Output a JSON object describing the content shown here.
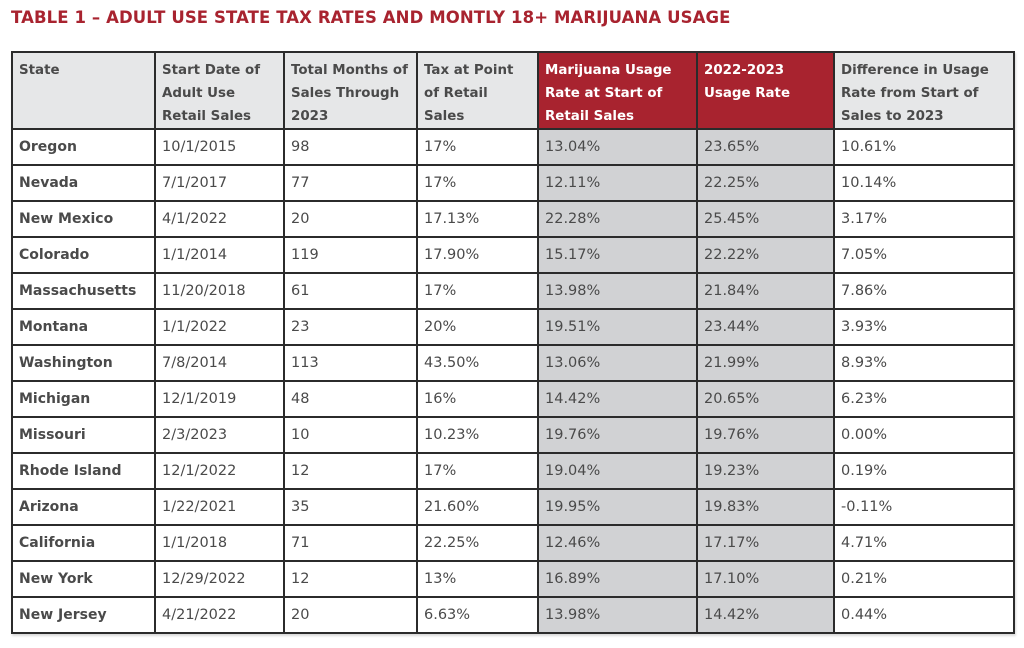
{
  "title": "TABLE 1 – ADULT USE STATE TAX RATES AND MONTLY 18+ MARIJUANA USAGE",
  "colors": {
    "accent_red": "#a8232f",
    "header_gray": "#e6e7e8",
    "highlight_gray": "#d1d2d4",
    "text": "#4a4a4a"
  },
  "table": {
    "headers": [
      "State",
      "Start Date of Adult Use Retail Sales",
      "Total Months of Sales Through 2023",
      "Tax at Point of Retail Sales",
      "Marijuana Usage Rate at Start of Retail Sales",
      "2022-2023 Usage Rate",
      "Difference in Usage Rate from Start of Sales to 2023"
    ],
    "rows": [
      [
        "Oregon",
        "10/1/2015",
        "98",
        "17%",
        "13.04%",
        "23.65%",
        "10.61%"
      ],
      [
        "Nevada",
        "7/1/2017",
        "77",
        "17%",
        "12.11%",
        "22.25%",
        "10.14%"
      ],
      [
        "New Mexico",
        "4/1/2022",
        "20",
        "17.13%",
        "22.28%",
        "25.45%",
        "3.17%"
      ],
      [
        "Colorado",
        "1/1/2014",
        "119",
        "17.90%",
        "15.17%",
        "22.22%",
        "7.05%"
      ],
      [
        "Massachusetts",
        "11/20/2018",
        "61",
        "17%",
        "13.98%",
        "21.84%",
        "7.86%"
      ],
      [
        "Montana",
        "1/1/2022",
        "23",
        "20%",
        "19.51%",
        "23.44%",
        "3.93%"
      ],
      [
        "Washington",
        "7/8/2014",
        "113",
        "43.50%",
        "13.06%",
        "21.99%",
        "8.93%"
      ],
      [
        "Michigan",
        "12/1/2019",
        "48",
        "16%",
        "14.42%",
        "20.65%",
        "6.23%"
      ],
      [
        "Missouri",
        "2/3/2023",
        "10",
        "10.23%",
        "19.76%",
        "19.76%",
        "0.00%"
      ],
      [
        "Rhode Island",
        "12/1/2022",
        "12",
        "17%",
        "19.04%",
        "19.23%",
        "0.19%"
      ],
      [
        "Arizona",
        "1/22/2021",
        "35",
        "21.60%",
        "19.95%",
        "19.83%",
        "-0.11%"
      ],
      [
        "California",
        "1/1/2018",
        "71",
        "22.25%",
        "12.46%",
        "17.17%",
        "4.71%"
      ],
      [
        "New York",
        "12/29/2022",
        "12",
        "13%",
        "16.89%",
        "17.10%",
        "0.21%"
      ],
      [
        "New Jersey",
        "4/21/2022",
        "20",
        "6.63%",
        "13.98%",
        "14.42%",
        "0.44%"
      ]
    ]
  }
}
